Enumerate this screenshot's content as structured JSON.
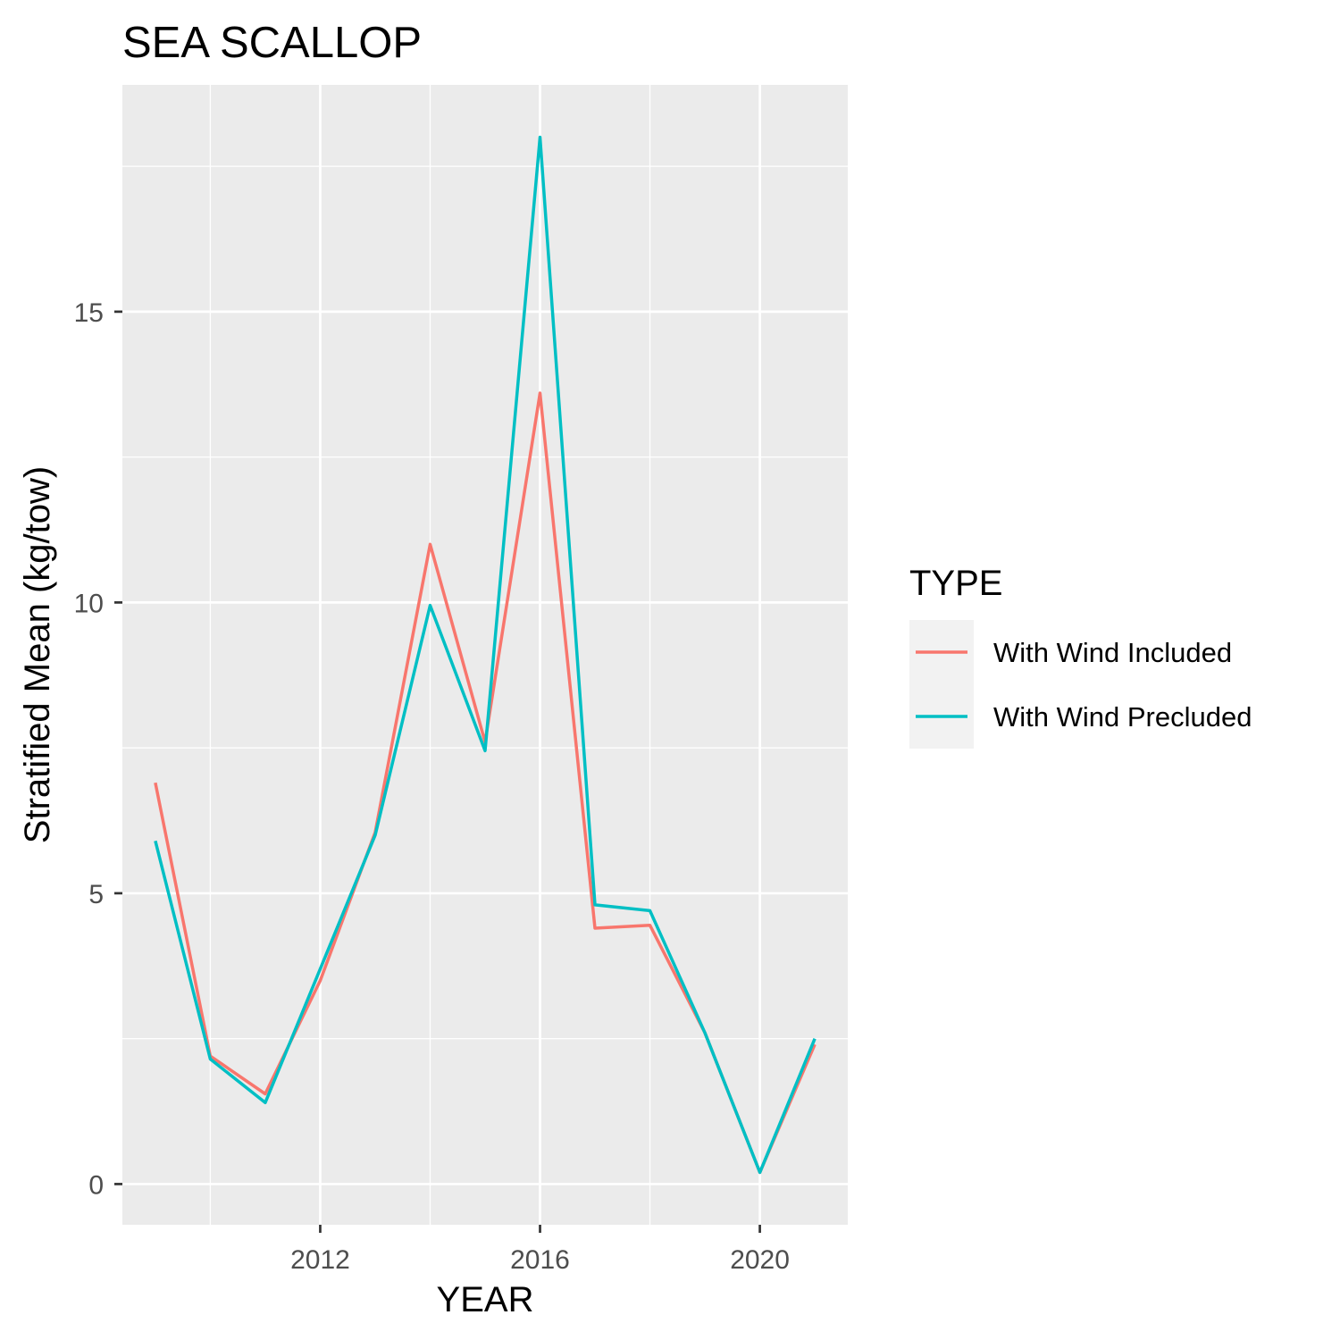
{
  "chart_data": {
    "type": "line",
    "title": "SEA SCALLOP",
    "xlabel": "YEAR",
    "ylabel": "Stratified Mean (kg/tow)",
    "x": [
      2009,
      2010,
      2011,
      2012,
      2013,
      2014,
      2015,
      2016,
      2017,
      2018,
      2019,
      2020,
      2021
    ],
    "series": [
      {
        "name": "With Wind Included",
        "color": "#F8766D",
        "values": [
          6.9,
          2.2,
          1.55,
          3.5,
          6.05,
          11.0,
          7.6,
          13.6,
          4.4,
          4.45,
          2.6,
          0.2,
          2.4
        ]
      },
      {
        "name": "With Wind Precluded",
        "color": "#00BFC4",
        "values": [
          5.9,
          2.15,
          1.4,
          3.7,
          6.0,
          9.95,
          7.45,
          18.0,
          4.8,
          4.7,
          2.6,
          0.2,
          2.5
        ]
      }
    ],
    "xlim": [
      2008.4,
      2021.6
    ],
    "ylim": [
      -0.7,
      18.9
    ],
    "x_ticks": [
      2012,
      2016,
      2020
    ],
    "x_tick_labels": [
      "2012",
      "2016",
      "2020"
    ],
    "y_ticks": [
      0,
      5,
      10,
      15
    ],
    "y_tick_labels": [
      "0",
      "5",
      "10",
      "15"
    ],
    "grid": true,
    "legend": {
      "title": "TYPE",
      "position": "right"
    },
    "panel_color": "#EBEBEB",
    "grid_color": "#FFFFFF"
  }
}
